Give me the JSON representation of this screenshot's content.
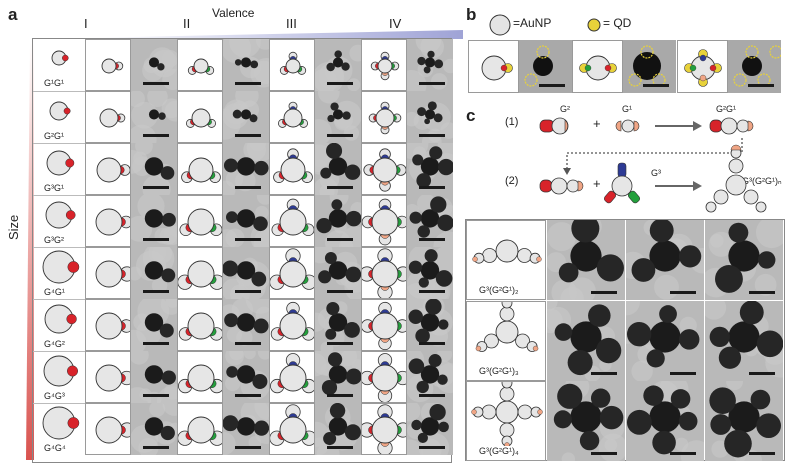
{
  "panel_a": {
    "letter": "a",
    "top_label": "Valence",
    "side_label": "Size",
    "columns": [
      "I",
      "II",
      "III",
      "IV"
    ],
    "rows": [
      "G¹G¹",
      "G²G¹",
      "G³G¹",
      "G³G²",
      "G⁴G¹",
      "G⁴G²",
      "G⁴G³",
      "G⁴G⁴"
    ]
  },
  "panel_b": {
    "letter": "b",
    "aunp_legend": "=AuNP",
    "qd_legend": "= QD"
  },
  "panel_c": {
    "letter": "c",
    "step1_num": "(1)",
    "step2_num": "(2)",
    "g2": "G²",
    "g1": "G¹",
    "g3": "G³",
    "plus": "+",
    "g2g1": "G²G¹",
    "product": "G³(G²G¹)ₙ",
    "rows": [
      "G³(G²G¹)₂",
      "G³(G²G¹)₃",
      "G³(G²G¹)₄"
    ]
  },
  "colors": {
    "red": "#d8232a",
    "green": "#23a03c",
    "blue": "#2d3a94",
    "salmon": "#f0a585",
    "gold": "#e8d23a",
    "gradient": "#d9534f"
  }
}
